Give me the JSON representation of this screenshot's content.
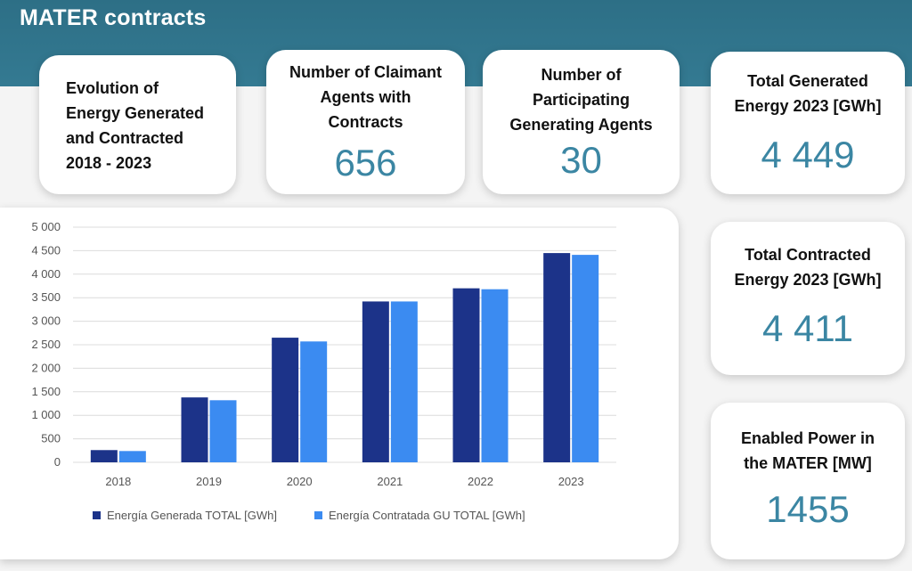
{
  "header": {
    "title": "MATER contracts"
  },
  "cards": {
    "evolution": {
      "line1": "Evolution of",
      "line2": "Energy Generated",
      "line3": "and Contracted",
      "line4": "2018 - 2023"
    },
    "claimant": {
      "line1": "Number of Claimant",
      "line2": "Agents with",
      "line3": "Contracts",
      "value": "656"
    },
    "participating": {
      "line1": "Number of",
      "line2": "Participating",
      "line3": "Generating Agents",
      "value": "30"
    },
    "total_generated": {
      "line1": "Total Generated",
      "line2": "Energy 2023 [GWh]",
      "value": "4 449"
    },
    "total_contracted": {
      "line1": "Total Contracted",
      "line2": "Energy 2023 [GWh]",
      "value": "4 411"
    },
    "enabled_power": {
      "line1": "Enabled Power in",
      "line2": "the MATER [MW]",
      "value": "1455"
    }
  },
  "chart_data": {
    "type": "bar",
    "categories": [
      "2018",
      "2019",
      "2020",
      "2021",
      "2022",
      "2023"
    ],
    "series": [
      {
        "name": "Energía Generada TOTAL [GWh]",
        "color": "#1c3389",
        "values": [
          260,
          1380,
          2650,
          3420,
          3700,
          4449
        ]
      },
      {
        "name": "Energía Contratada GU TOTAL [GWh]",
        "color": "#3b8bf1",
        "values": [
          240,
          1320,
          2570,
          3420,
          3680,
          4411
        ]
      }
    ],
    "ylim": [
      0,
      5000
    ],
    "yticks": [
      0,
      500,
      1000,
      1500,
      2000,
      2500,
      3000,
      3500,
      4000,
      4500,
      5000
    ],
    "ytick_labels": [
      "0",
      "500",
      "1 000",
      "1 500",
      "2 000",
      "2 500",
      "3 000",
      "3 500",
      "4 000",
      "4 500",
      "5 000"
    ],
    "grid": true,
    "legend": "bottom",
    "title": "",
    "xlabel": "",
    "ylabel": ""
  }
}
